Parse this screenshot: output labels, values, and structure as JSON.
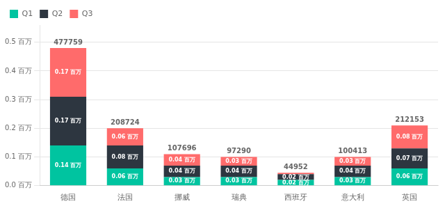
{
  "chart_data": {
    "type": "bar",
    "stacked": true,
    "categories": [
      "德国",
      "法国",
      "挪威",
      "瑞典",
      "西班牙",
      "意大利",
      "英国"
    ],
    "series": [
      {
        "name": "Q1",
        "color": "#00c4a0",
        "values": [
          0.14,
          0.06,
          0.03,
          0.03,
          0.02,
          0.03,
          0.06
        ],
        "value_labels": [
          "0.14 百万",
          "0.06 百万",
          "0.03 百万",
          "0.03 百万",
          "0.02 百万",
          "0.03 百万",
          "0.06 百万"
        ]
      },
      {
        "name": "Q2",
        "color": "#2d3640",
        "values": [
          0.17,
          0.08,
          0.04,
          0.04,
          0.02,
          0.04,
          0.07
        ],
        "value_labels": [
          "0.17 百万",
          "0.08 百万",
          "0.04 百万",
          "0.04 百万",
          "0.02 百万",
          "0.04 百万",
          "0.07 百万"
        ]
      },
      {
        "name": "Q3",
        "color": "#ff6b6b",
        "values": [
          0.17,
          0.06,
          0.04,
          0.03,
          0.005,
          0.03,
          0.08
        ],
        "value_labels": [
          "0.17 百万",
          "0.06 百万",
          "0.04 百万",
          "0.03 百万",
          null,
          "0.03 百万",
          "0.08 百万"
        ]
      }
    ],
    "totals": [
      "477759",
      "208724",
      "107696",
      "97290",
      "44952",
      "100413",
      "212153"
    ],
    "ylim": [
      0,
      0.56
    ],
    "yticks": [
      {
        "value": 0.0,
        "label": "0.0 百万"
      },
      {
        "value": 0.1,
        "label": "0.1 百万"
      },
      {
        "value": 0.2,
        "label": "0.2 百万"
      },
      {
        "value": 0.3,
        "label": "0.3 百万"
      },
      {
        "value": 0.4,
        "label": "0.4 百万"
      },
      {
        "value": 0.5,
        "label": "0.5 百万"
      }
    ],
    "grid": "y",
    "legend": "upper left",
    "data_labels": true
  }
}
